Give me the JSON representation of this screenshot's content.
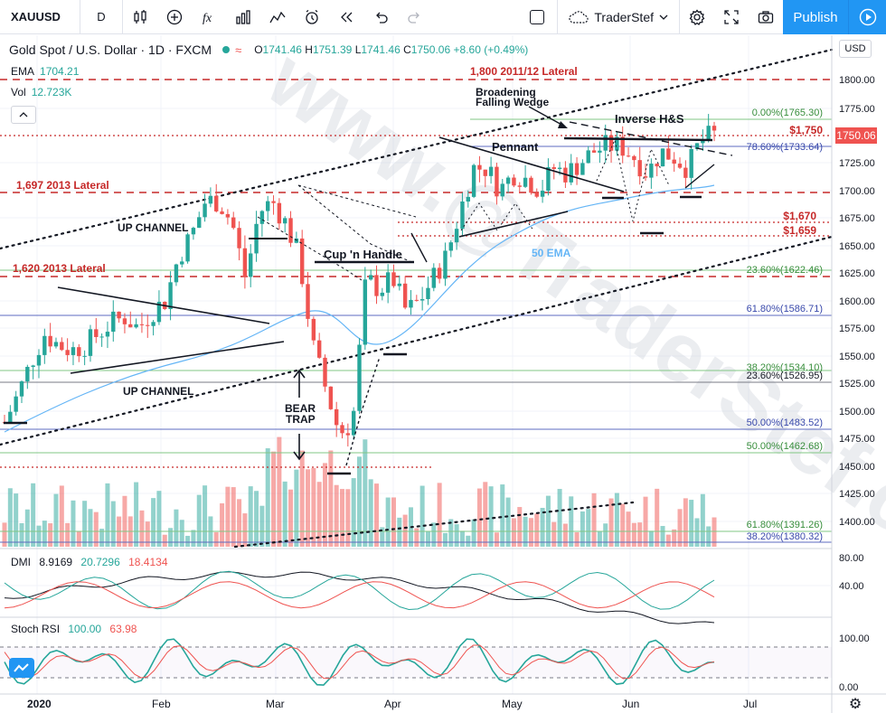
{
  "toolbar": {
    "symbol": "XAUUSD",
    "interval": "D",
    "layout_name": "TraderStef",
    "publish_label": "Publish",
    "icons": [
      "bar-style-icon",
      "indicators-icon",
      "fx-icon",
      "templates-icon",
      "compare-icon",
      "alert-icon",
      "replay-icon",
      "undo-icon",
      "redo-icon",
      "settings-icon",
      "fullscreen-icon",
      "camera-icon"
    ]
  },
  "legend": {
    "title": "Gold Spot / U.S. Dollar · 1D · FXCM",
    "open_label": "O",
    "open": "1741.46",
    "high_label": "H",
    "high": "1751.39",
    "low_label": "L",
    "low": "1741.46",
    "close_label": "C",
    "close": "1750.06",
    "change": "+8.60 (+0.49%)",
    "ema_label": "EMA",
    "ema_value": "1704.21",
    "vol_label": "Vol",
    "vol_value": "12.723K"
  },
  "price_scale": {
    "currency": "USD",
    "current_price": "1750.06",
    "ticks": [
      "1800.00",
      "1775.00",
      "1750.00",
      "1725.00",
      "1700.00",
      "1675.00",
      "1650.00",
      "1625.00",
      "1600.00",
      "1575.00",
      "1550.00",
      "1525.00",
      "1500.00",
      "1475.00",
      "1450.00",
      "1425.00",
      "1400.00"
    ]
  },
  "time_axis": {
    "labels": [
      "2020",
      "Feb",
      "Mar",
      "Apr",
      "May",
      "Jun",
      "Jul"
    ]
  },
  "annotations": {
    "lateral_1800": "1,800 2011/12 Lateral",
    "lateral_1697": "1,697 2013 Lateral",
    "lateral_1620": "1,620 2013 Lateral",
    "level_1750": "$1,750",
    "level_1670": "$1,670",
    "level_1659": "$1,659",
    "broadening": "Broadening",
    "falling_wedge": "Falling Wedge",
    "inverse_hs": "Inverse H&S",
    "pennant": "Pennant",
    "up_channel_1": "UP CHANNEL",
    "up_channel_2": "UP CHANNEL",
    "cup_handle": "Cup 'n Handle",
    "ema50": "50 EMA",
    "bear": "BEAR",
    "trap": "TRAP",
    "watermark": "www.@TraderStef.com"
  },
  "fib_labels": [
    "0.00%(1765.30)",
    "78.60%(1733.64)",
    "23.60%(1622.46)",
    "61.80%(1586.71)",
    "38.20%(1534.10)",
    "23.60%(1526.95)",
    "50.00%(1483.52)",
    "50.00%(1462.68)",
    "61.80%(1391.26)",
    "38.20%(1380.32)"
  ],
  "dmi": {
    "label": "DMI",
    "adx": "8.9169",
    "plus_di": "20.7296",
    "minus_di": "18.4134",
    "ticks": [
      "80.00",
      "40.00"
    ]
  },
  "stoch": {
    "label": "Stoch RSI",
    "k": "100.00",
    "d": "63.98",
    "ticks": [
      "100.00",
      "0.00"
    ]
  },
  "colors": {
    "up": "#26a69a",
    "down": "#ef5350",
    "accent": "#2196f3",
    "lateral": "#c62828"
  },
  "chart_data": {
    "type": "candlestick",
    "title": "Gold Spot / U.S. Dollar · 1D · FXCM",
    "ylim": [
      1380,
      1820
    ],
    "x_labels": [
      "2020",
      "Feb",
      "Mar",
      "Apr",
      "May",
      "Jun",
      "Jul"
    ],
    "key_levels": [
      1800,
      1750,
      1697,
      1670,
      1659,
      1620
    ],
    "close_path": [
      1490,
      1515,
      1545,
      1570,
      1560,
      1555,
      1560,
      1570,
      1580,
      1585,
      1575,
      1590,
      1600,
      1640,
      1660,
      1690,
      1690,
      1670,
      1620,
      1680,
      1690,
      1670,
      1640,
      1560,
      1520,
      1480,
      1490,
      1620,
      1610,
      1620,
      1590,
      1600,
      1620,
      1640,
      1680,
      1720,
      1720,
      1700,
      1715,
      1710,
      1700,
      1720,
      1715,
      1725,
      1735,
      1740,
      1740,
      1730,
      1715,
      1735,
      1730,
      1720,
      1745,
      1750
    ]
  }
}
